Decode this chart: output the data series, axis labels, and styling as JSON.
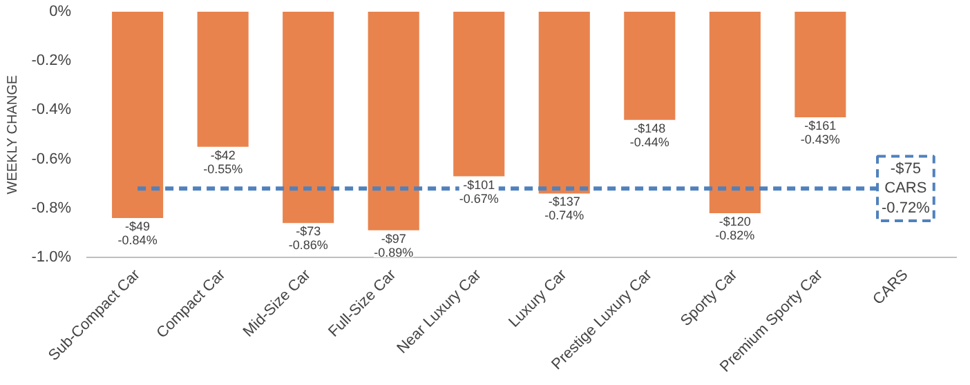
{
  "chart_data": {
    "type": "bar",
    "ylabel": "WEEKLY CHANGE",
    "categories": [
      "Sub-Compact Car",
      "Compact Car",
      "Mid-Size Car",
      "Full-Size Car",
      "Near Luxury Car",
      "Luxury Car",
      "Prestige Luxury Car",
      "Sporty Car",
      "Premium Sporty Car",
      "CARS"
    ],
    "values": [
      -0.84,
      -0.55,
      -0.86,
      -0.89,
      -0.67,
      -0.74,
      -0.44,
      -0.82,
      -0.43,
      null
    ],
    "value_labels": [
      "-$49\n-0.84%",
      "-$42\n-0.55%",
      "-$73\n-0.86%",
      "-$97\n-0.89%",
      "-$101\n-0.67%",
      "-$137\n-0.74%",
      "-$148\n-0.44%",
      "-$120\n-0.82%",
      "-$161\n-0.43%",
      null
    ],
    "color": "#e8834e",
    "ylim": [
      -1.0,
      0
    ],
    "yticks": [
      {
        "value": 0,
        "label": "0%"
      },
      {
        "value": -0.2,
        "label": "-0.2%"
      },
      {
        "value": -0.4,
        "label": "-0.4%"
      },
      {
        "value": -0.6,
        "label": "-0.6%"
      },
      {
        "value": -0.8,
        "label": "-0.8%"
      },
      {
        "value": -1.0,
        "label": "-1.0%"
      }
    ],
    "grid": false,
    "ref_lines": [
      {
        "axis": "y",
        "value": -0.72,
        "label": "-$75\nCARS\n-0.72%",
        "color": "#4f81bd",
        "line_style": "dashed"
      }
    ]
  }
}
